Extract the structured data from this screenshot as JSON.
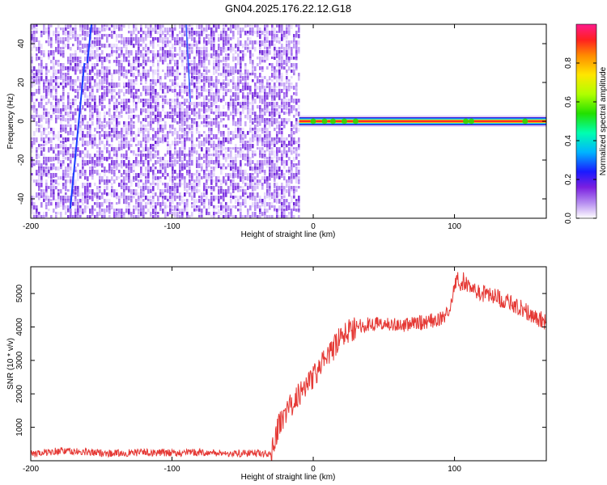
{
  "title": "GN04.2025.176.22.12.G18",
  "colors": {
    "snr_line": "#e53935",
    "spectrogram_noise": "#7a2fe0",
    "frame": "#000000"
  },
  "chart_data": [
    {
      "type": "heatmap",
      "name": "spectrogram",
      "xlabel": "Height of straight line (km)",
      "ylabel": "Frequency (Hz)",
      "xlim": [
        -200,
        165
      ],
      "ylim": [
        -50,
        50
      ],
      "x_ticks": [
        -200,
        -100,
        0,
        100
      ],
      "x_tick_labels": [
        "-200",
        "-100",
        "0",
        "100"
      ],
      "y_ticks": [
        40,
        20,
        0,
        -20,
        -40
      ],
      "y_tick_labels": [
        "40",
        "20",
        "0",
        "-20",
        "-40"
      ],
      "noise_region_x": [
        -200,
        -10
      ],
      "signal_frequency_hz": 0,
      "signal_region_x": [
        -10,
        165
      ],
      "colorbar": {
        "label": "Normalized spectral amplitude",
        "range": [
          0,
          1
        ],
        "ticks": [
          0.0,
          0.2,
          0.4,
          0.6,
          0.8
        ],
        "tick_labels": [
          "0.0",
          "0.2",
          "0.4",
          "0.6",
          "0.8"
        ],
        "colormap": [
          "#ffffff",
          "#8a2be2",
          "#0000ff",
          "#00bfff",
          "#00ff7f",
          "#7fff00",
          "#ffff00",
          "#ff8c00",
          "#ff0000",
          "#ff1493"
        ]
      }
    },
    {
      "type": "line",
      "name": "snr",
      "xlabel": "Height of straight line (km)",
      "ylabel": "SNR (10 * v/v)",
      "xlim": [
        -200,
        165
      ],
      "ylim": [
        0,
        5800
      ],
      "x_ticks": [
        -200,
        -100,
        0,
        100
      ],
      "x_tick_labels": [
        "-200",
        "-100",
        "0",
        "100"
      ],
      "y_ticks": [
        1000,
        2000,
        3000,
        4000,
        5000
      ],
      "y_tick_labels": [
        "1000",
        "2000",
        "3000",
        "4000",
        "5000"
      ],
      "series": [
        {
          "x": [
            -200,
            -180,
            -160,
            -140,
            -120,
            -100,
            -80,
            -60,
            -40,
            -30,
            -28,
            -25,
            -20,
            -15,
            -10,
            -5,
            0,
            5,
            10,
            15,
            20,
            25,
            30,
            40,
            50,
            60,
            70,
            80,
            90,
            95,
            100,
            102,
            104,
            106,
            108,
            110,
            120,
            130,
            140,
            150,
            160,
            165
          ],
          "y": [
            200,
            300,
            250,
            220,
            250,
            230,
            250,
            220,
            220,
            200,
            500,
            1000,
            1400,
            1700,
            2000,
            2300,
            2500,
            2800,
            3100,
            3400,
            3700,
            3900,
            4000,
            4100,
            4100,
            4050,
            4100,
            4150,
            4250,
            4400,
            5200,
            5600,
            5100,
            5400,
            5300,
            5200,
            5000,
            4900,
            4700,
            4500,
            4250,
            4100
          ]
        }
      ]
    }
  ]
}
